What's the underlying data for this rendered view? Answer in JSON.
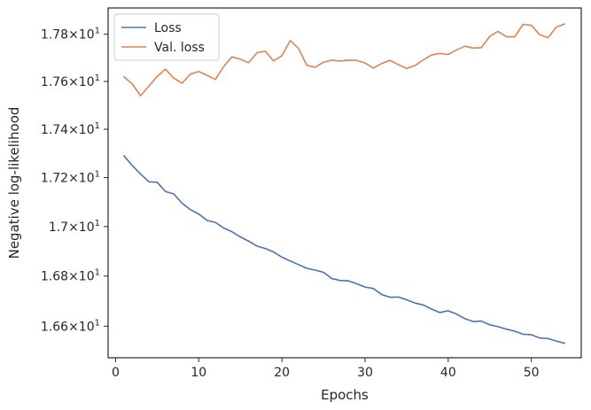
{
  "chart_data": {
    "type": "line",
    "xlabel": "Epochs",
    "ylabel": "Negative log-likelihood",
    "xlim": [
      -0.9,
      56.0
    ],
    "ylim": [
      16.475,
      17.912
    ],
    "y_scale": "log",
    "x_ticks": [
      0,
      10,
      20,
      30,
      40,
      50
    ],
    "x_tick_labels": [
      "0",
      "10",
      "20",
      "30",
      "40",
      "50"
    ],
    "y_ticks": [
      16.6,
      16.8,
      17.0,
      17.2,
      17.4,
      17.6,
      17.8
    ],
    "y_tick_labels": [
      {
        "mantissa": "1.66",
        "base": "10",
        "exponent": "1"
      },
      {
        "mantissa": "1.68",
        "base": "10",
        "exponent": "1"
      },
      {
        "mantissa": "1.7",
        "base": "10",
        "exponent": "1"
      },
      {
        "mantissa": "1.72",
        "base": "10",
        "exponent": "1"
      },
      {
        "mantissa": "1.74",
        "base": "10",
        "exponent": "1"
      },
      {
        "mantissa": "1.76",
        "base": "10",
        "exponent": "1"
      },
      {
        "mantissa": "1.78",
        "base": "10",
        "exponent": "1"
      }
    ],
    "times_sign": "×",
    "legend": "top-left",
    "grid": false,
    "x": [
      1,
      2,
      3,
      4,
      5,
      6,
      7,
      8,
      9,
      10,
      11,
      12,
      13,
      14,
      15,
      16,
      17,
      18,
      19,
      20,
      21,
      22,
      23,
      24,
      25,
      26,
      27,
      28,
      29,
      30,
      31,
      32,
      33,
      34,
      35,
      36,
      37,
      38,
      39,
      40,
      41,
      42,
      43,
      44,
      45,
      46,
      47,
      48,
      49,
      50,
      51,
      52,
      53,
      54
    ],
    "series": [
      {
        "name": "Loss",
        "color": "#4c72b0",
        "values": [
          17.29,
          17.25,
          17.215,
          17.183,
          17.181,
          17.143,
          17.133,
          17.095,
          17.069,
          17.051,
          17.025,
          17.017,
          16.994,
          16.979,
          16.958,
          16.941,
          16.921,
          16.911,
          16.897,
          16.876,
          16.861,
          16.846,
          16.831,
          16.824,
          16.815,
          16.79,
          16.782,
          16.781,
          16.769,
          16.756,
          16.75,
          16.726,
          16.715,
          16.716,
          16.705,
          16.692,
          16.684,
          16.668,
          16.654,
          16.661,
          16.648,
          16.63,
          16.618,
          16.62,
          16.605,
          16.598,
          16.588,
          16.58,
          16.568,
          16.566,
          16.553,
          16.551,
          16.541,
          16.532
        ]
      },
      {
        "name": "Val. loss",
        "color": "#dd8452",
        "values": [
          17.62,
          17.59,
          17.54,
          17.58,
          17.621,
          17.652,
          17.614,
          17.593,
          17.631,
          17.642,
          17.626,
          17.608,
          17.663,
          17.704,
          17.694,
          17.679,
          17.721,
          17.728,
          17.687,
          17.708,
          17.773,
          17.74,
          17.668,
          17.66,
          17.681,
          17.69,
          17.686,
          17.69,
          17.689,
          17.678,
          17.656,
          17.676,
          17.689,
          17.671,
          17.655,
          17.667,
          17.691,
          17.712,
          17.718,
          17.714,
          17.733,
          17.749,
          17.741,
          17.743,
          17.791,
          17.812,
          17.789,
          17.789,
          17.842,
          17.838,
          17.798,
          17.785,
          17.83,
          17.844
        ]
      }
    ]
  }
}
